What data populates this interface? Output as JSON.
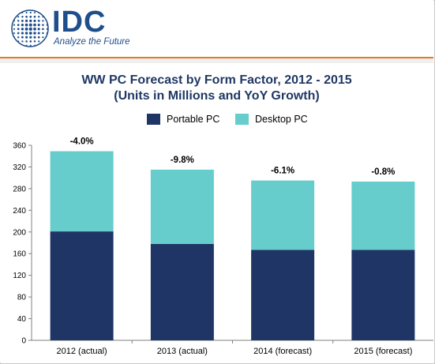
{
  "brand": {
    "logo_text": "IDC",
    "tagline": "Analyze the Future",
    "primary_color": "#1f4e8c",
    "accent_rule_color": "#e87722"
  },
  "chart_data": {
    "type": "bar",
    "stacked": true,
    "title": "WW PC Forecast by Form Factor, 2012 - 2015",
    "subtitle": "(Units in Millions and YoY Growth)",
    "xlabel": "",
    "ylabel": "",
    "ylim": [
      0,
      360
    ],
    "yticks": [
      0,
      40,
      80,
      120,
      160,
      200,
      240,
      280,
      320,
      360
    ],
    "grid": false,
    "legend_position": "top",
    "categories": [
      "2012 (actual)",
      "2013 (actual)",
      "2014 (forecast)",
      "2015 (forecast)"
    ],
    "series": [
      {
        "name": "Portable PC",
        "color": "#1f3566",
        "values": [
          201,
          178,
          167,
          167
        ]
      },
      {
        "name": "Desktop PC",
        "color": "#66cccc",
        "values": [
          148,
          137,
          128,
          126
        ]
      }
    ],
    "data_labels": [
      "-4.0%",
      "-9.8%",
      "-6.1%",
      "-0.8%"
    ]
  }
}
